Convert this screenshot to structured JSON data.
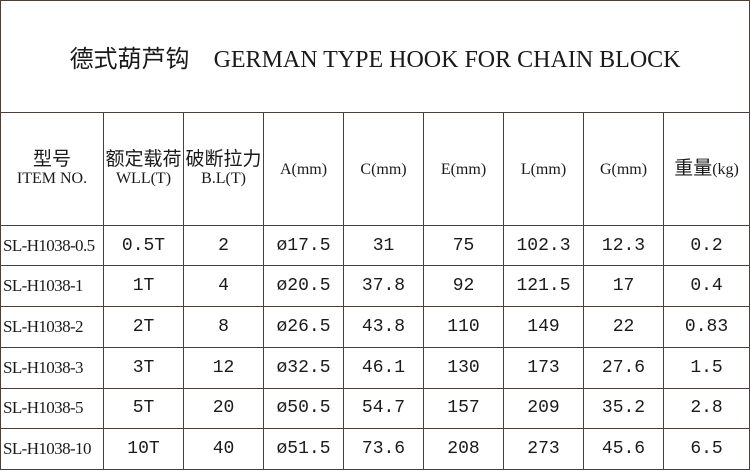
{
  "title": {
    "cn": "德式葫芦钩",
    "en": "GERMAN TYPE HOOK FOR CHAIN BLOCK"
  },
  "headers": [
    {
      "cn": "型号",
      "en": "ITEM NO."
    },
    {
      "cn": "额定载荷",
      "en": "WLL(T)"
    },
    {
      "cn": "破断拉力",
      "en": "B.L(T)"
    },
    {
      "cn": "",
      "en": "A(mm)"
    },
    {
      "cn": "",
      "en": "C(mm)"
    },
    {
      "cn": "",
      "en": "E(mm)"
    },
    {
      "cn": "",
      "en": "L(mm)"
    },
    {
      "cn": "",
      "en": "G(mm)"
    },
    {
      "cn": "重量",
      "en": "(kg)"
    }
  ],
  "rows": [
    [
      "SL-H1038-0.5",
      "0.5T",
      "2",
      "ø17.5",
      "31",
      "75",
      "102.3",
      "12.3",
      "0.2"
    ],
    [
      "SL-H1038-1",
      "1T",
      "4",
      "ø20.5",
      "37.8",
      "92",
      "121.5",
      "17",
      "0.4"
    ],
    [
      "SL-H1038-2",
      "2T",
      "8",
      "ø26.5",
      "43.8",
      "110",
      "149",
      "22",
      "0.83"
    ],
    [
      "SL-H1038-3",
      "3T",
      "12",
      "ø32.5",
      "46.1",
      "130",
      "173",
      "27.6",
      "1.5"
    ],
    [
      "SL-H1038-5",
      "5T",
      "20",
      "ø50.5",
      "54.7",
      "157",
      "209",
      "35.2",
      "2.8"
    ],
    [
      "SL-H1038-10",
      "10T",
      "40",
      "ø51.5",
      "73.6",
      "208",
      "273",
      "45.6",
      "6.5"
    ]
  ]
}
